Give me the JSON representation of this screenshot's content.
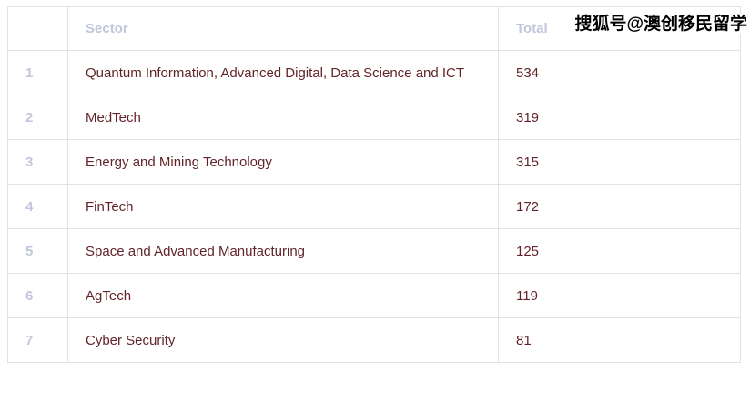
{
  "watermark": {
    "text": "搜狐号@澳创移民留学"
  },
  "table": {
    "columns": [
      {
        "key": "rank",
        "label": ""
      },
      {
        "key": "sector",
        "label": "Sector"
      },
      {
        "key": "total",
        "label": "Total"
      }
    ],
    "rows": [
      {
        "rank": "1",
        "sector": "Quantum Information, Advanced Digital, Data Science and ICT",
        "total": "534"
      },
      {
        "rank": "2",
        "sector": "MedTech",
        "total": "319"
      },
      {
        "rank": "3",
        "sector": "Energy and Mining Technology",
        "total": "315"
      },
      {
        "rank": "4",
        "sector": "FinTech",
        "total": "172"
      },
      {
        "rank": "5",
        "sector": "Space and Advanced Manufacturing",
        "total": "125"
      },
      {
        "rank": "6",
        "sector": "AgTech",
        "total": "119"
      },
      {
        "rank": "7",
        "sector": "Cyber Security",
        "total": "81"
      }
    ]
  },
  "chart_data": {
    "type": "table",
    "title": "",
    "categories": [
      "Quantum Information, Advanced Digital, Data Science and ICT",
      "MedTech",
      "Energy and Mining Technology",
      "FinTech",
      "Space and Advanced Manufacturing",
      "AgTech",
      "Cyber Security"
    ],
    "values": [
      534,
      319,
      315,
      172,
      125,
      119,
      81
    ],
    "xlabel": "Sector",
    "ylabel": "Total",
    "legend_position": "none",
    "grid": true
  },
  "colors": {
    "background": "#ffffff",
    "border": "#e2e2e2",
    "header_text": "#c2c6db",
    "body_text": "#622428",
    "watermark_text": "#000000",
    "watermark_outline": "#ffffff"
  }
}
